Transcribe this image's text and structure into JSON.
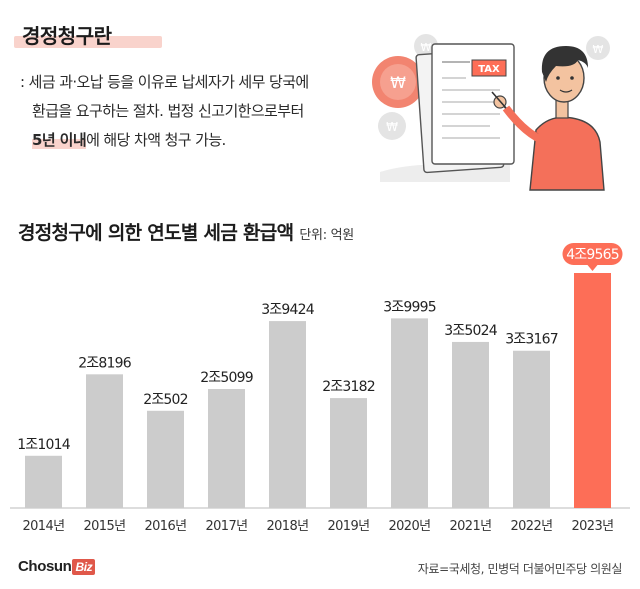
{
  "definition": {
    "title": "경정청구란",
    "line1": ": 세금 과·오납 등을 이유로 납세자가 세무 당국에",
    "line2": "환급을 요구하는 절차. 법정 신고기한으로부터",
    "line3_highlight": "5년 이내",
    "line3_rest": "에 해당 차액 청구 가능."
  },
  "illustration": {
    "tax_label": "TAX",
    "icon": "taxpayer-with-tax-document-icon",
    "coin_icon": "won-coin-icon"
  },
  "colors": {
    "bar": "#cccccc",
    "bar_highlight": "#fd6e57",
    "accent_underline": "#f9d3cc"
  },
  "chart_data": {
    "type": "bar",
    "title": "경정청구에 의한 연도별 세금 환급액",
    "unit": "단위: 억원",
    "categories": [
      "2014년",
      "2015년",
      "2016년",
      "2017년",
      "2018년",
      "2019년",
      "2020년",
      "2021년",
      "2022년",
      "2023년"
    ],
    "values": [
      11014,
      28196,
      20502,
      25099,
      39424,
      23182,
      39995,
      35024,
      33167,
      49565
    ],
    "value_labels": [
      "1조1014",
      "2조8196",
      "2조502",
      "2조5099",
      "3조9424",
      "2조3182",
      "3조9995",
      "3조5024",
      "3조3167",
      "4조9565"
    ],
    "highlight_index": 9,
    "ylim": [
      0,
      49565
    ],
    "grid": false,
    "legend": "none"
  },
  "footer": {
    "logo_main": "ChosunBiz",
    "logo_chosun": "Chosun",
    "logo_biz": "Biz",
    "source": "자료=국세청, 민병덕 더불어민주당 의원실"
  }
}
